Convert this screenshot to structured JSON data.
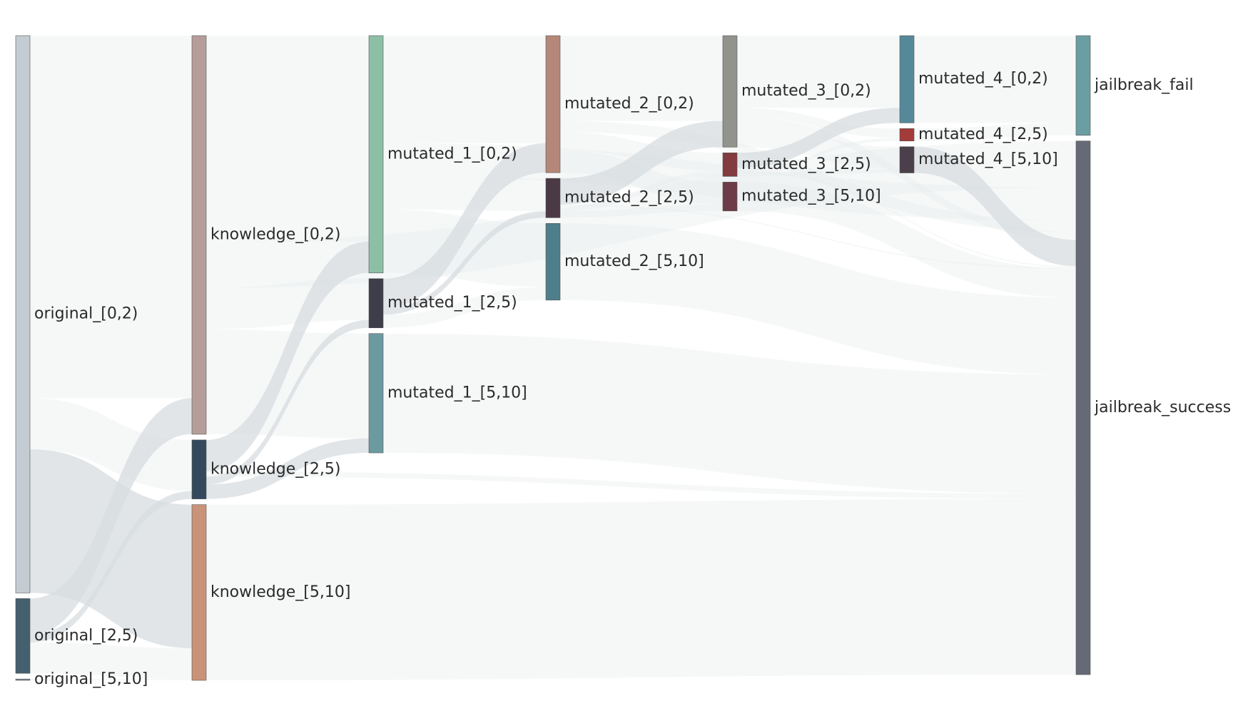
{
  "diagram": {
    "type": "sankey",
    "link_color": "#e4e8ea",
    "link_color_alt": "#d7dce0",
    "nodes": [
      {
        "id": "o02",
        "label": "original_[0,2)",
        "column": 0,
        "color": "#c4ccd3"
      },
      {
        "id": "o25",
        "label": "original_[2,5)",
        "column": 0,
        "color": "#44606e"
      },
      {
        "id": "o510",
        "label": "original_[5,10]",
        "column": 0,
        "color": "#7d8a92"
      },
      {
        "id": "k02",
        "label": "knowledge_[0,2)",
        "column": 1,
        "color": "#b59e99"
      },
      {
        "id": "k25",
        "label": "knowledge_[2,5)",
        "column": 1,
        "color": "#34495c"
      },
      {
        "id": "k510",
        "label": "knowledge_[5,10]",
        "column": 1,
        "color": "#c99379"
      },
      {
        "id": "m1_02",
        "label": "mutated_1_[0,2)",
        "column": 2,
        "color": "#8dbfa6"
      },
      {
        "id": "m1_25",
        "label": "mutated_1_[2,5)",
        "column": 2,
        "color": "#3e3d4a"
      },
      {
        "id": "m1_510",
        "label": "mutated_1_[5,10]",
        "column": 2,
        "color": "#6c9aa1"
      },
      {
        "id": "m2_02",
        "label": "mutated_2_[0,2)",
        "column": 3,
        "color": "#b58779"
      },
      {
        "id": "m2_25",
        "label": "mutated_2_[2,5)",
        "column": 3,
        "color": "#4b3a46"
      },
      {
        "id": "m2_510",
        "label": "mutated_2_[5,10]",
        "column": 3,
        "color": "#4f7e8b"
      },
      {
        "id": "m3_02",
        "label": "mutated_3_[0,2)",
        "column": 4,
        "color": "#92938d"
      },
      {
        "id": "m3_25",
        "label": "mutated_3_[2,5)",
        "column": 4,
        "color": "#823b3f"
      },
      {
        "id": "m3_510",
        "label": "mutated_3_[5,10]",
        "column": 4,
        "color": "#6e3c48"
      },
      {
        "id": "m4_02",
        "label": "mutated_4_[0,2)",
        "column": 5,
        "color": "#55899a"
      },
      {
        "id": "m4_25",
        "label": "mutated_4_[2,5)",
        "column": 5,
        "color": "#a33b3b"
      },
      {
        "id": "m4_510",
        "label": "mutated_4_[5,10]",
        "column": 5,
        "color": "#4b3f4c"
      },
      {
        "id": "jf",
        "label": "jailbreak_fail",
        "column": 6,
        "color": "#6a9ea3"
      },
      {
        "id": "js",
        "label": "jailbreak_success",
        "column": 6,
        "color": "#666a76"
      }
    ],
    "links": [
      {
        "source": "o02",
        "target": "k02",
        "value": 553
      },
      {
        "source": "o02",
        "target": "k25",
        "value": 78
      },
      {
        "source": "o02",
        "target": "k510",
        "value": 219
      },
      {
        "source": "o25",
        "target": "k02",
        "value": 55
      },
      {
        "source": "o25",
        "target": "k25",
        "value": 12
      },
      {
        "source": "o25",
        "target": "k510",
        "value": 47
      },
      {
        "source": "o510",
        "target": "k510",
        "value": 2
      },
      {
        "source": "k02",
        "target": "m1_02",
        "value": 314
      },
      {
        "source": "k02",
        "target": "m1_25",
        "value": 63
      },
      {
        "source": "k02",
        "target": "m1_510",
        "value": 160
      },
      {
        "source": "k02",
        "target": "js",
        "value": 71
      },
      {
        "source": "k25",
        "target": "m1_02",
        "value": 48
      },
      {
        "source": "k25",
        "target": "m1_25",
        "value": 12
      },
      {
        "source": "k25",
        "target": "m1_510",
        "value": 22
      },
      {
        "source": "k25",
        "target": "js",
        "value": 8
      },
      {
        "source": "k510",
        "target": "js",
        "value": 268
      },
      {
        "source": "m1_02",
        "target": "m2_02",
        "value": 164
      },
      {
        "source": "m1_02",
        "target": "m2_25",
        "value": 50
      },
      {
        "source": "m1_02",
        "target": "m2_510",
        "value": 97
      },
      {
        "source": "m1_02",
        "target": "js",
        "value": 51
      },
      {
        "source": "m1_25",
        "target": "m2_02",
        "value": 45
      },
      {
        "source": "m1_25",
        "target": "m2_25",
        "value": 10
      },
      {
        "source": "m1_25",
        "target": "m2_510",
        "value": 20
      },
      {
        "source": "m1_510",
        "target": "js",
        "value": 182
      },
      {
        "source": "m2_02",
        "target": "m3_02",
        "value": 130
      },
      {
        "source": "m2_02",
        "target": "m3_25",
        "value": 28
      },
      {
        "source": "m2_02",
        "target": "m3_510",
        "value": 34
      },
      {
        "source": "m2_02",
        "target": "js",
        "value": 17
      },
      {
        "source": "m2_25",
        "target": "m3_02",
        "value": 40
      },
      {
        "source": "m2_25",
        "target": "m3_25",
        "value": 8
      },
      {
        "source": "m2_25",
        "target": "m3_510",
        "value": 10
      },
      {
        "source": "m2_25",
        "target": "js",
        "value": 2
      },
      {
        "source": "m2_510",
        "target": "js",
        "value": 117
      },
      {
        "source": "m3_02",
        "target": "m4_02",
        "value": 110
      },
      {
        "source": "m3_02",
        "target": "m4_25",
        "value": 14
      },
      {
        "source": "m3_02",
        "target": "m4_510",
        "value": 34
      },
      {
        "source": "m3_02",
        "target": "js",
        "value": 12
      },
      {
        "source": "m3_25",
        "target": "m4_02",
        "value": 23
      },
      {
        "source": "m3_25",
        "target": "m4_25",
        "value": 5
      },
      {
        "source": "m3_25",
        "target": "m4_510",
        "value": 6
      },
      {
        "source": "m3_25",
        "target": "js",
        "value": 2
      },
      {
        "source": "m3_510",
        "target": "js",
        "value": 44
      },
      {
        "source": "m4_02",
        "target": "jf",
        "value": 133
      },
      {
        "source": "m4_25",
        "target": "jf",
        "value": 19
      },
      {
        "source": "m4_510",
        "target": "js",
        "value": 40
      }
    ]
  }
}
